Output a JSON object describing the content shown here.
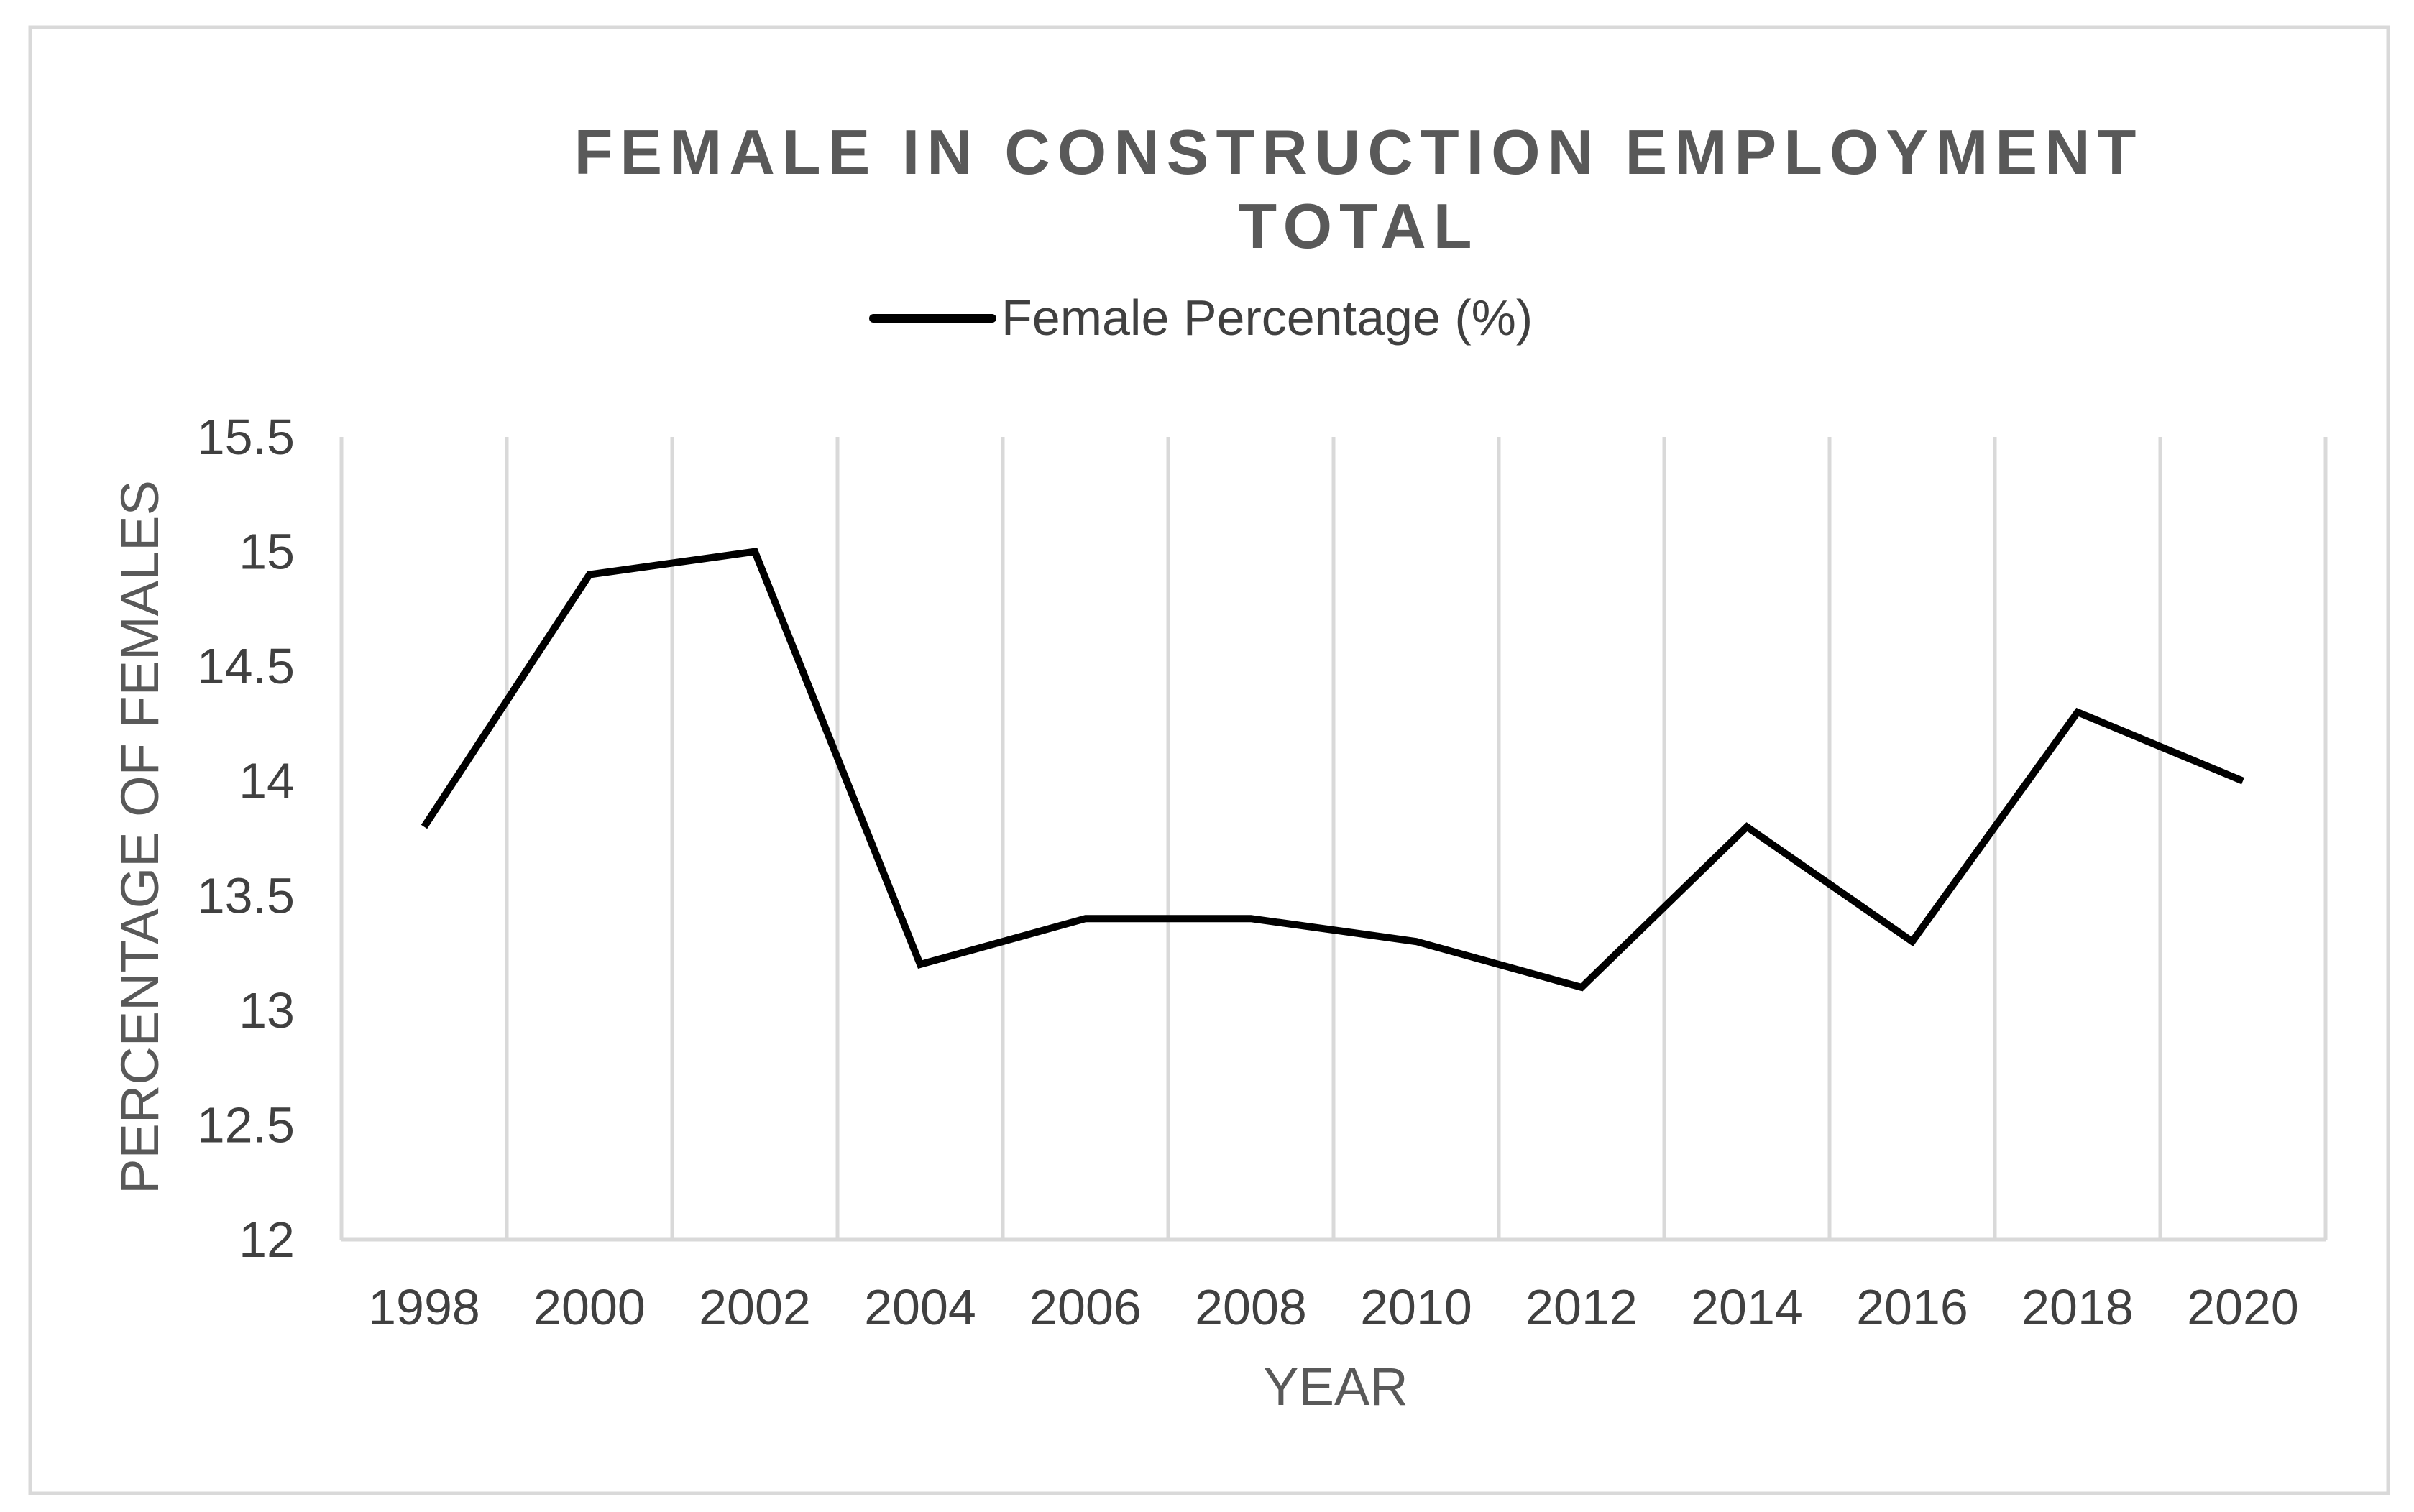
{
  "chart_data": {
    "type": "line",
    "title": [
      "FEMALE IN CONSTRUCTION EMPLOYMENT",
      "TOTAL"
    ],
    "xlabel": "YEAR",
    "ylabel": "PERCENTAGE OF FEMALES",
    "x_tick_labels": [
      "1998",
      "2000",
      "2002",
      "2004",
      "2006",
      "2008",
      "2010",
      "2012",
      "2014",
      "2016",
      "2018",
      "2020"
    ],
    "y_tick_labels": [
      "15.5",
      "15",
      "14.5",
      "14",
      "13.5",
      "13",
      "12.5",
      "12"
    ],
    "ylim": [
      12,
      15.5
    ],
    "y_ticks": [
      12,
      12.5,
      13,
      13.5,
      14,
      14.5,
      15,
      15.5
    ],
    "grid": "vertical",
    "legend_position": "top",
    "series": [
      {
        "name": "Female Percentage (%)",
        "color": "#000000",
        "x": [
          1997,
          1999,
          2001,
          2003,
          2005,
          2007,
          2009,
          2011,
          2013,
          2015,
          2017,
          2019
        ],
        "values": [
          13.8,
          14.9,
          15.0,
          13.2,
          13.4,
          13.4,
          13.3,
          13.1,
          13.8,
          13.3,
          14.3,
          14.0
        ]
      }
    ],
    "colors": {
      "grid": "#d9d9d9",
      "frame": "#d9d9d9",
      "title": "#595959",
      "tick_text": "#404040"
    }
  }
}
